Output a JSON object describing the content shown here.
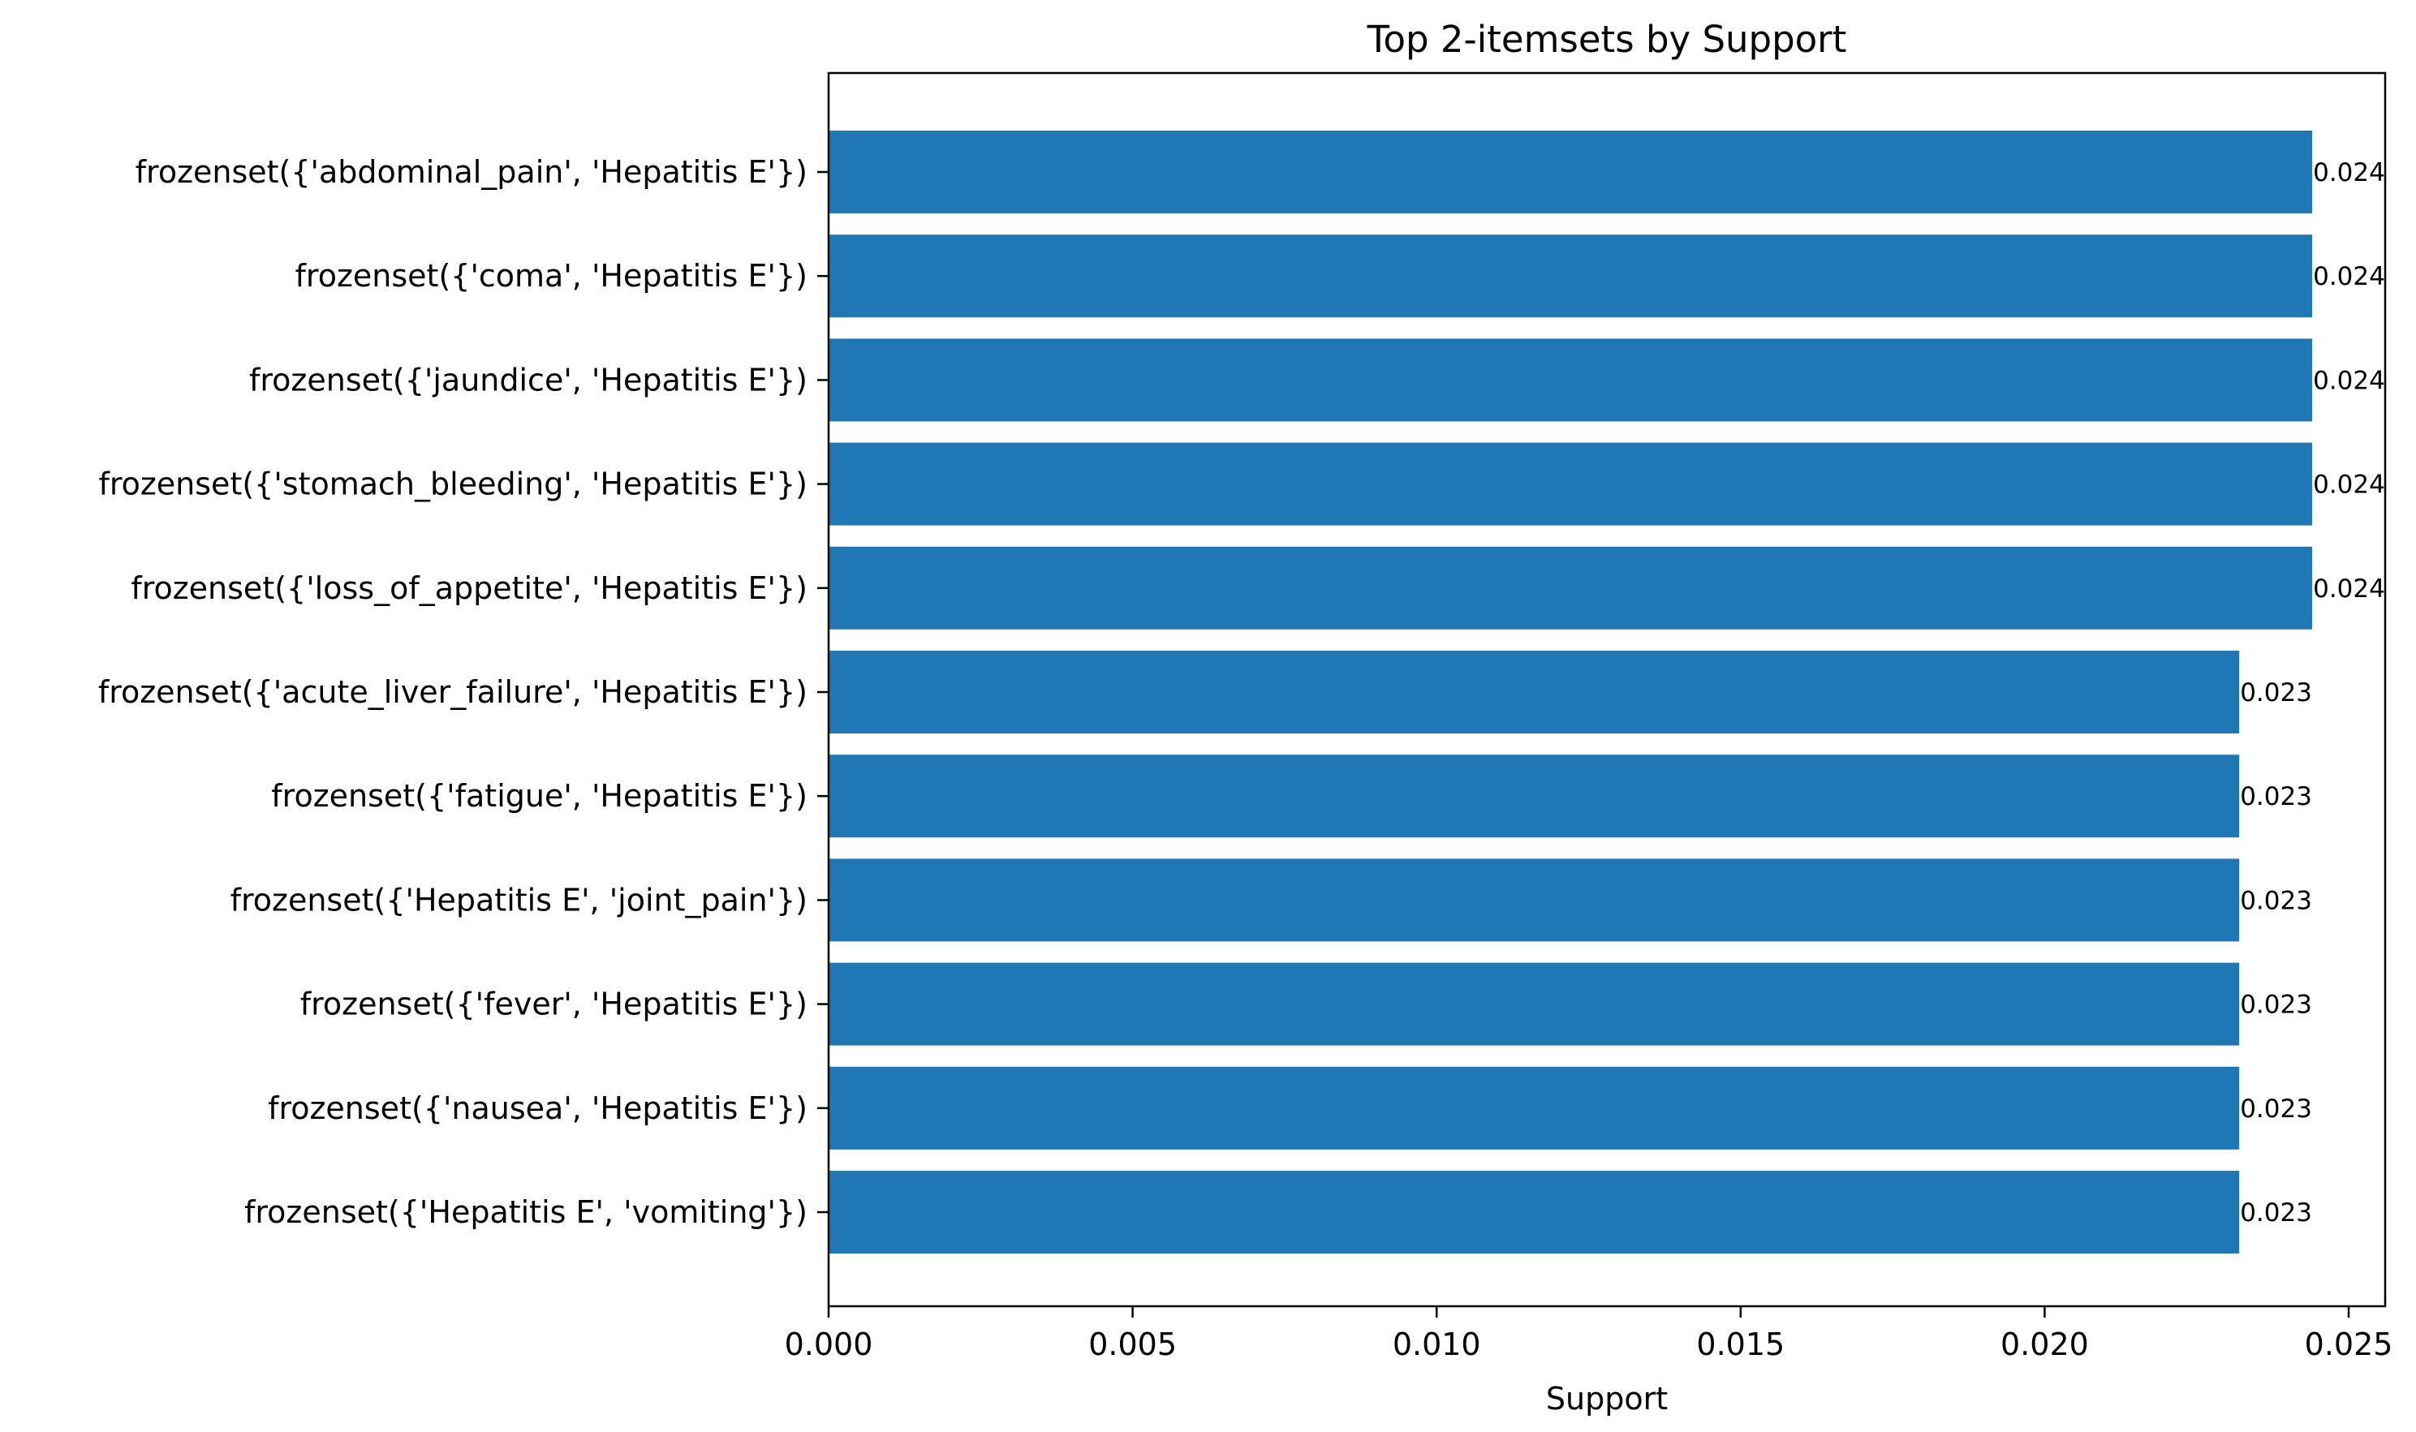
{
  "chart_data": {
    "type": "bar",
    "orientation": "horizontal",
    "title": "Top 2-itemsets by Support",
    "xlabel": "Support",
    "ylabel": "",
    "xlim": [
      0,
      0.0256
    ],
    "xticks": [
      0.0,
      0.005,
      0.01,
      0.015,
      0.02,
      0.025
    ],
    "xtick_labels": [
      "0.000",
      "0.005",
      "0.010",
      "0.015",
      "0.020",
      "0.025"
    ],
    "grid": false,
    "bar_color": "#1f77b4",
    "categories": [
      "frozenset({'abdominal_pain', 'Hepatitis E'})",
      "frozenset({'coma', 'Hepatitis E'})",
      "frozenset({'jaundice', 'Hepatitis E'})",
      "frozenset({'stomach_bleeding', 'Hepatitis E'})",
      "frozenset({'loss_of_appetite', 'Hepatitis E'})",
      "frozenset({'acute_liver_failure', 'Hepatitis E'})",
      "frozenset({'fatigue', 'Hepatitis E'})",
      "frozenset({'Hepatitis E', 'joint_pain'})",
      "frozenset({'fever', 'Hepatitis E'})",
      "frozenset({'nausea', 'Hepatitis E'})",
      "frozenset({'Hepatitis E', 'vomiting'})"
    ],
    "values": [
      0.0244,
      0.0244,
      0.0244,
      0.0244,
      0.0244,
      0.0232,
      0.0232,
      0.0232,
      0.0232,
      0.0232,
      0.0232
    ],
    "data_labels": [
      "0.024",
      "0.024",
      "0.024",
      "0.024",
      "0.024",
      "0.023",
      "0.023",
      "0.023",
      "0.023",
      "0.023",
      "0.023"
    ]
  }
}
